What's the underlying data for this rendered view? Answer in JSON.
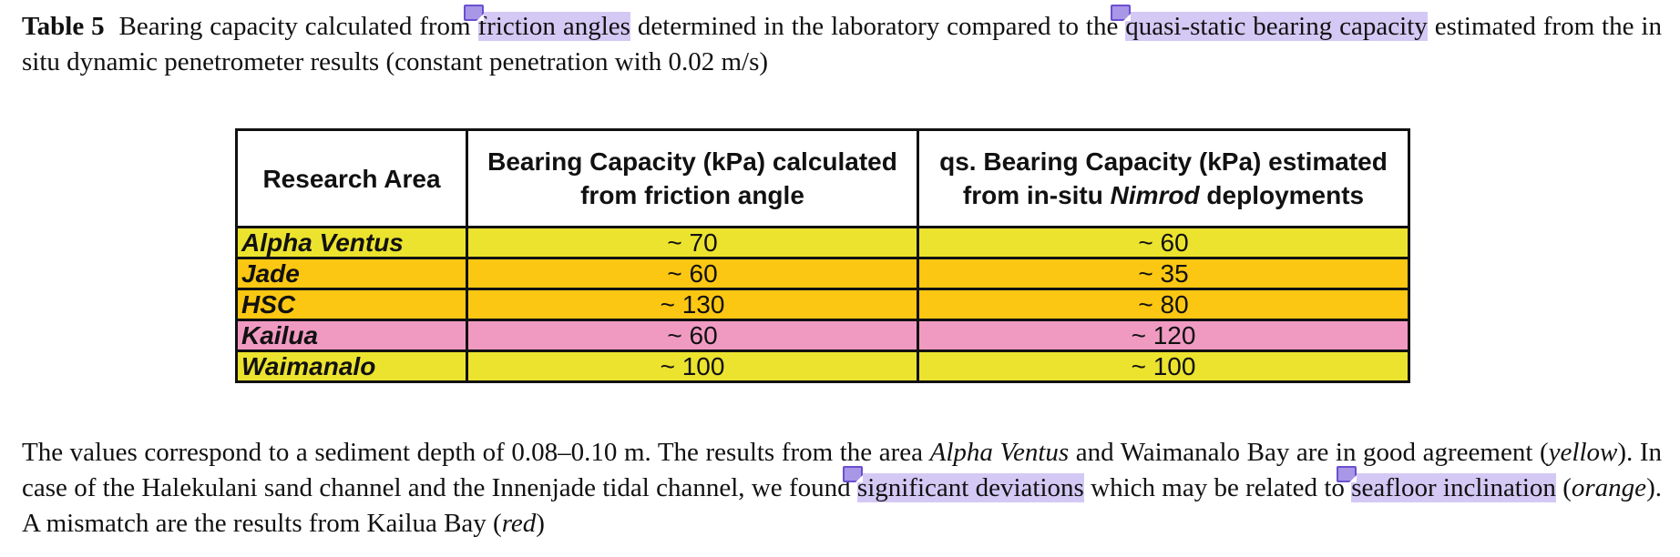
{
  "caption": {
    "label": "Table 5",
    "part1": "Bearing capacity calculated from ",
    "hl1": "friction angles",
    "part2": " determined in the laboratory compared to the ",
    "hl2": "quasi-static bearing capacity",
    "line2": "estimated from the in situ dynamic penetrometer results (constant penetration with 0.02 m/s)"
  },
  "table": {
    "headers": {
      "col1": "Research Area",
      "col2_line1": "Bearing Capacity (kPa) calculated",
      "col2_line2": "from friction angle",
      "col3_line1": "qs. Bearing Capacity (kPa) estimated",
      "col3_line2_pre": "from in-situ ",
      "col3_line2_em": "Nimrod",
      "col3_line2_post": " deployments"
    },
    "rows": [
      {
        "area": "Alpha Ventus",
        "calc": "~ 70",
        "est": "~ 60",
        "color": "#ece32e"
      },
      {
        "area": "Jade",
        "calc": "~ 60",
        "est": "~ 35",
        "color": "#fbc712"
      },
      {
        "area": "HSC",
        "calc": "~ 130",
        "est": "~ 80",
        "color": "#fbc712"
      },
      {
        "area": "Kailua",
        "calc": "~ 60",
        "est": "~ 120",
        "color": "#f09ac2"
      },
      {
        "area": "Waimanalo",
        "calc": "~ 100",
        "est": "~ 100",
        "color": "#ece32e"
      }
    ]
  },
  "body": {
    "s1": "The values correspond to a sediment depth of 0.08–0.10 m. The results from the area ",
    "s1_em": "Alpha Ventus",
    "s2": " and Waimanalo Bay are in good agreement (",
    "s2_em": "yellow",
    "s3": "). In case of the Halekulani sand channel and the Innenjade tidal channel, we found ",
    "hl3": "significant deviations",
    "s4": " which may be related to ",
    "hl4": "seafloor inclination",
    "s5": " (",
    "s5_em": "orange",
    "s6": "). A mismatch are the results from Kailua Bay (",
    "s6_em": "red",
    "s7": ")"
  },
  "colors": {
    "highlight": "#d4c9f4",
    "yellow": "#ece32e",
    "orange": "#fbc712",
    "pink": "#f09ac2"
  },
  "icons": [
    "comment-note-icon"
  ]
}
